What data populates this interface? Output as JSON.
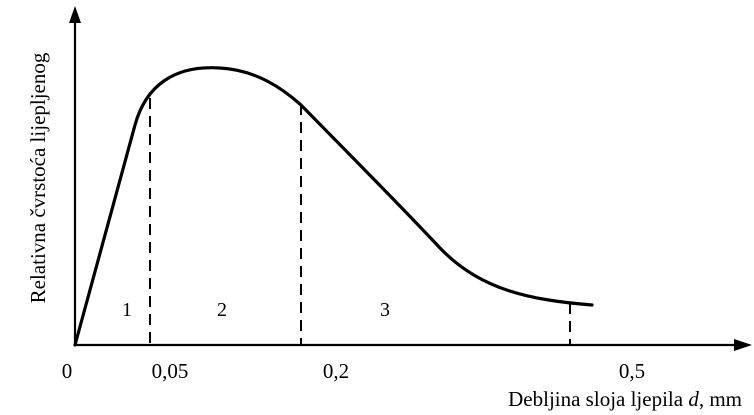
{
  "chart_data": {
    "type": "line",
    "title": "",
    "xlabel": "Debljina sloja ljepila d, mm",
    "xlabel_parts": [
      "Debljina sloja ljepila ",
      "d",
      ", mm"
    ],
    "ylabel": "Relativna čvrstoća lijepljenog",
    "ylabel_parts": [
      "Relativna čvrstoća lijepljenog"
    ],
    "x_ticks": [
      "0",
      "0,05",
      "0,2",
      "0,5"
    ],
    "y_range": [
      0,
      1
    ],
    "grid": false,
    "legend": "none",
    "region_labels": [
      "1",
      "2",
      "3"
    ],
    "series": [
      {
        "name": "",
        "x_scale_note": "",
        "points": [
          {
            "x": 0.0,
            "y": 0.0
          },
          {
            "x": 0.05,
            "y": 0.76
          },
          {
            "x": 0.1,
            "y": 0.86
          },
          {
            "x": 0.2,
            "y": 0.74
          },
          {
            "x": 0.3,
            "y": 0.32
          },
          {
            "x": 0.5,
            "y": 0.13
          }
        ]
      }
    ]
  }
}
